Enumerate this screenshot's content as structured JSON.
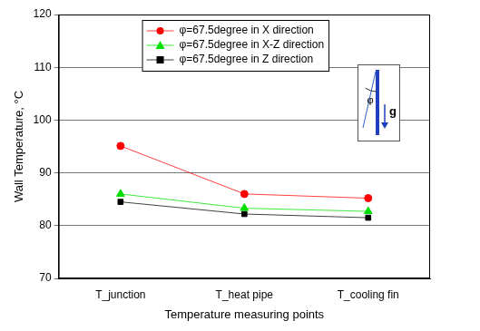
{
  "chart_data": {
    "type": "line",
    "x_label": "Temperature measuring points",
    "y_label": "Wall Temperature, °C",
    "categories": [
      "T_junction",
      "T_heat pipe",
      "T_cooling fin"
    ],
    "series": [
      {
        "name": "φ=67.5degree in X direction",
        "color": "#ff0000",
        "marker": "circle",
        "values": [
          95.1,
          86.0,
          85.2
        ]
      },
      {
        "name": "φ=67.5degree in X-Z direction",
        "color": "#00e000",
        "marker": "triangle",
        "values": [
          86.0,
          83.3,
          82.7
        ]
      },
      {
        "name": "φ=67.5degree in Z direction",
        "color": "#000000",
        "marker": "square",
        "values": [
          84.5,
          82.2,
          81.5
        ]
      }
    ],
    "ylim": [
      70,
      120
    ],
    "yticks": [
      70,
      80,
      90,
      100,
      110,
      120
    ],
    "grid": true,
    "legend": "upper center",
    "annotations": [
      "φ",
      "g"
    ]
  }
}
